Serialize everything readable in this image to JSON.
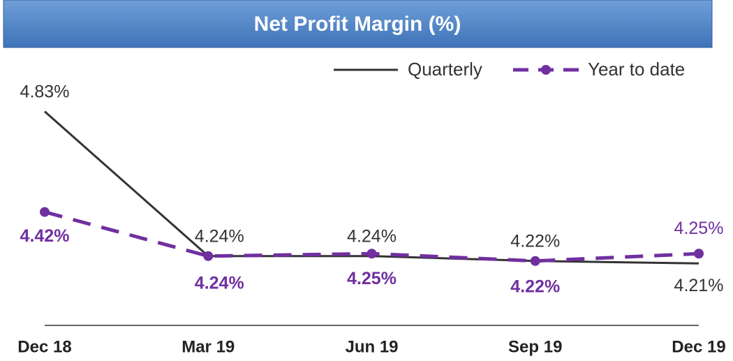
{
  "chart_data": {
    "type": "line",
    "title": "Net Profit Margin (%)",
    "categories": [
      "Dec 18",
      "Mar 19",
      "Jun 19",
      "Sep 19",
      "Dec 19"
    ],
    "series": [
      {
        "name": "Quarterly",
        "color": "#333333",
        "values": [
          4.83,
          4.24,
          4.24,
          4.22,
          4.21
        ],
        "value_labels": [
          "4.83%",
          "4.24%",
          "4.24%",
          "4.22%",
          "4.21%"
        ]
      },
      {
        "name": "Year to date",
        "color": "#7030a0",
        "values": [
          4.42,
          4.24,
          4.25,
          4.22,
          4.25
        ],
        "value_labels": [
          "4.42%",
          "4.24%",
          "4.25%",
          "4.22%",
          "4.25%"
        ]
      }
    ],
    "ylim": [
      4.0,
      5.0
    ],
    "legend": "top-right"
  }
}
